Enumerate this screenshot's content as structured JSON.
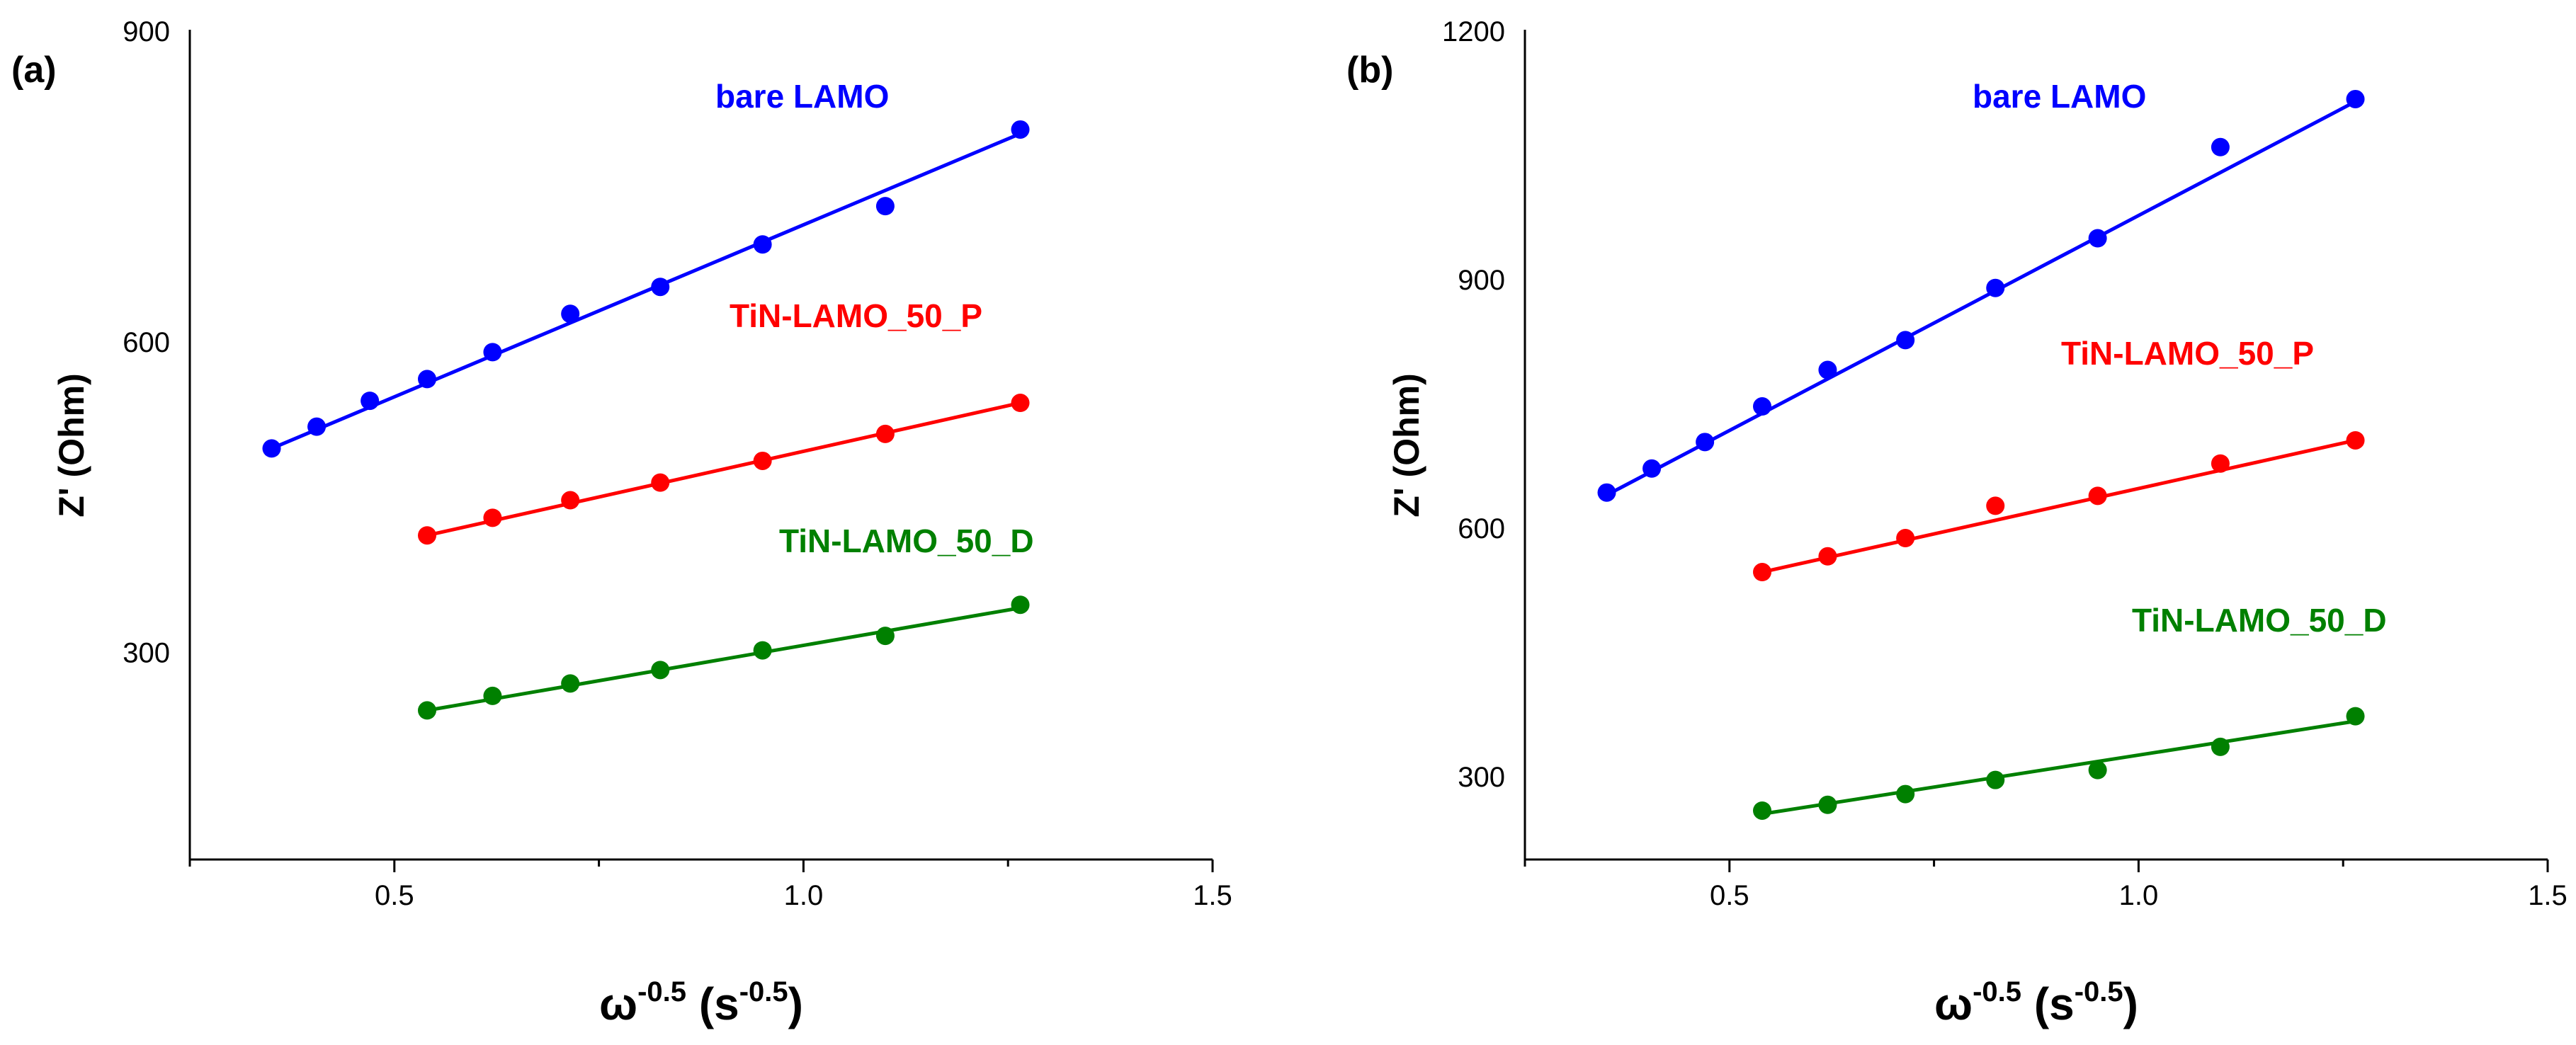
{
  "chart_data": [
    {
      "type": "scatter",
      "panel_label": "(a)",
      "title": "",
      "xlabel": "ω",
      "xlabel_exp": "-0.5",
      "xlabel_unit": " (s",
      "xlabel_unit_exp": "-0.5",
      "xlabel_close": ")",
      "ylabel": "Z' (Ohm)",
      "xlim": [
        0.25,
        1.5
      ],
      "ylim": [
        100,
        900
      ],
      "xticks": [
        0.5,
        1.0,
        1.5
      ],
      "xtick_labels": [
        "0.5",
        "1.0",
        "1.5"
      ],
      "yticks": [
        300,
        600,
        900
      ],
      "ytick_labels": [
        "300",
        "600",
        "900"
      ],
      "grid": false,
      "series": [
        {
          "name": "bare LAMO",
          "color": "#0000ff",
          "x": [
            0.35,
            0.405,
            0.47,
            0.54,
            0.62,
            0.715,
            0.825,
            0.95,
            1.1,
            1.265
          ],
          "y": [
            497,
            518,
            543,
            564,
            590,
            627,
            653,
            694,
            731,
            805
          ],
          "fit": [
            [
              0.35,
              497
            ],
            [
              1.265,
              801
            ]
          ]
        },
        {
          "name": "TiN-LAMO_50_P",
          "color": "#ff0000",
          "x": [
            0.54,
            0.62,
            0.715,
            0.825,
            0.95,
            1.1,
            1.265
          ],
          "y": [
            413,
            430,
            447,
            464,
            485,
            511,
            541
          ],
          "fit": [
            [
              0.54,
              413
            ],
            [
              1.265,
              541
            ]
          ]
        },
        {
          "name": "TiN-LAMO_50_D",
          "color": "#008000",
          "x": [
            0.54,
            0.62,
            0.715,
            0.825,
            0.95,
            1.1,
            1.265
          ],
          "y": [
            244,
            258,
            270,
            283,
            302,
            316,
            346
          ],
          "fit": [
            [
              0.54,
              244
            ],
            [
              1.265,
              343
            ]
          ]
        }
      ]
    },
    {
      "type": "scatter",
      "panel_label": "(b)",
      "title": "",
      "xlabel": "ω",
      "xlabel_exp": "-0.5",
      "xlabel_unit": " (s",
      "xlabel_unit_exp": "-0.5",
      "xlabel_close": ")",
      "ylabel": "Z' (Ohm)",
      "xlim": [
        0.25,
        1.5
      ],
      "ylim": [
        200,
        1200
      ],
      "xticks": [
        0.5,
        1.0,
        1.5
      ],
      "xtick_labels": [
        "0.5",
        "1.0",
        "1.5"
      ],
      "yticks": [
        300,
        600,
        900,
        1200
      ],
      "ytick_labels": [
        "300",
        "600",
        "900",
        "1200"
      ],
      "grid": false,
      "series": [
        {
          "name": "bare LAMO",
          "color": "#0000ff",
          "x": [
            0.35,
            0.405,
            0.47,
            0.54,
            0.62,
            0.715,
            0.825,
            0.95,
            1.1,
            1.265
          ],
          "y": [
            643,
            672,
            704,
            747,
            791,
            827,
            890,
            950,
            1060,
            1118
          ],
          "fit": [
            [
              0.35,
              640
            ],
            [
              1.265,
              1115
            ]
          ]
        },
        {
          "name": "TiN-LAMO_50_P",
          "color": "#ff0000",
          "x": [
            0.54,
            0.62,
            0.715,
            0.825,
            0.95,
            1.1,
            1.265
          ],
          "y": [
            547,
            566,
            588,
            627,
            639,
            678,
            706
          ],
          "fit": [
            [
              0.54,
              547
            ],
            [
              1.265,
              706
            ]
          ]
        },
        {
          "name": "TiN-LAMO_50_D",
          "color": "#008000",
          "x": [
            0.54,
            0.62,
            0.715,
            0.825,
            0.95,
            1.1,
            1.265
          ],
          "y": [
            259,
            266,
            279,
            296,
            308,
            336,
            373
          ],
          "fit": [
            [
              0.54,
              255
            ],
            [
              1.265,
              367
            ]
          ]
        }
      ]
    }
  ]
}
